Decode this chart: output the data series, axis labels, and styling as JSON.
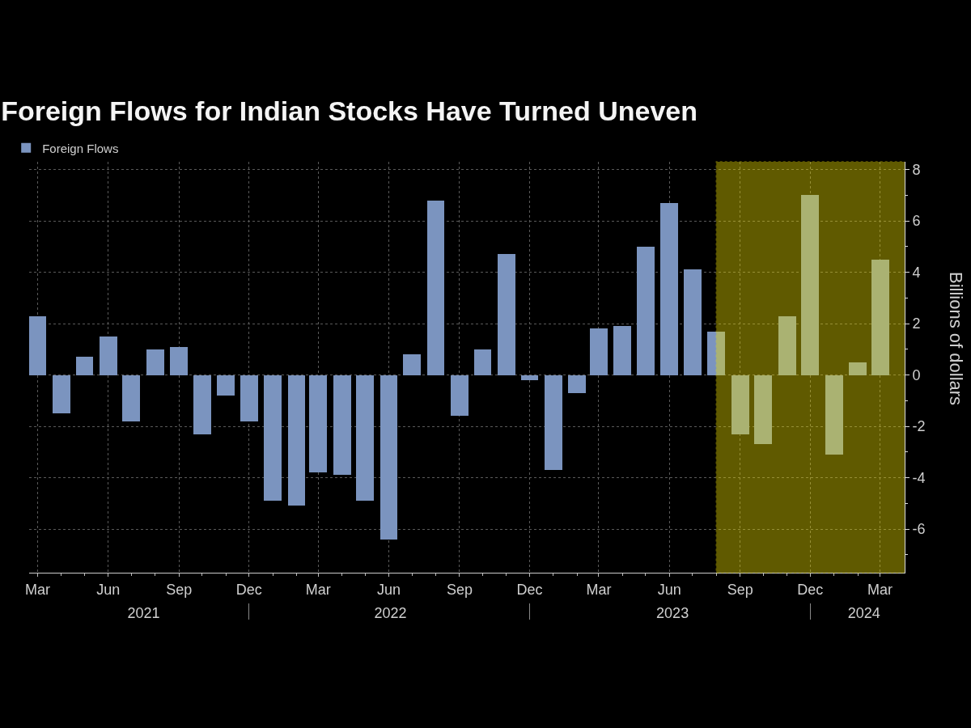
{
  "chart_data": {
    "type": "bar",
    "title": "Foreign Flows for Indian Stocks Have Turned Uneven",
    "ylabel": "Billions of dollars",
    "x": [
      "2021-03",
      "2021-04",
      "2021-05",
      "2021-06",
      "2021-07",
      "2021-08",
      "2021-09",
      "2021-10",
      "2021-11",
      "2021-12",
      "2022-01",
      "2022-02",
      "2022-03",
      "2022-04",
      "2022-05",
      "2022-06",
      "2022-07",
      "2022-08",
      "2022-09",
      "2022-10",
      "2022-11",
      "2022-12",
      "2023-01",
      "2023-02",
      "2023-03",
      "2023-04",
      "2023-05",
      "2023-06",
      "2023-07",
      "2023-08",
      "2023-09",
      "2023-10",
      "2023-11",
      "2023-12",
      "2024-01",
      "2024-02",
      "2024-03"
    ],
    "series": [
      {
        "name": "Foreign Flows",
        "color": "#7b94bf",
        "values": [
          2.3,
          -1.5,
          0.7,
          1.5,
          -1.8,
          1.0,
          1.1,
          -2.3,
          -0.8,
          -1.8,
          -4.9,
          -5.1,
          -3.8,
          -3.9,
          -4.9,
          -6.4,
          0.8,
          6.8,
          -1.6,
          1.0,
          4.7,
          -0.2,
          -3.7,
          -0.7,
          1.8,
          1.9,
          5.0,
          6.7,
          4.1,
          1.7,
          -2.3,
          -2.7,
          2.3,
          7.0,
          -3.1,
          0.5,
          4.5
        ]
      }
    ],
    "xlim": [
      "2021-02-18",
      "2024-04-02"
    ],
    "xticks": [
      {
        "value": "2021-03",
        "label": "Mar"
      },
      {
        "value": "2021-04",
        "label": null
      },
      {
        "value": "2021-05",
        "label": null
      },
      {
        "value": "2021-06",
        "label": "Jun"
      },
      {
        "value": "2021-07",
        "label": null
      },
      {
        "value": "2021-08",
        "label": null
      },
      {
        "value": "2021-09",
        "label": "Sep"
      },
      {
        "value": "2021-10",
        "label": null
      },
      {
        "value": "2021-11",
        "label": null
      },
      {
        "value": "2021-12",
        "label": "Dec"
      },
      {
        "value": "2022-01",
        "label": null
      },
      {
        "value": "2022-02",
        "label": null
      },
      {
        "value": "2022-03",
        "label": "Mar"
      },
      {
        "value": "2022-04",
        "label": null
      },
      {
        "value": "2022-05",
        "label": null
      },
      {
        "value": "2022-06",
        "label": "Jun"
      },
      {
        "value": "2022-07",
        "label": null
      },
      {
        "value": "2022-08",
        "label": null
      },
      {
        "value": "2022-09",
        "label": "Sep"
      },
      {
        "value": "2022-10",
        "label": null
      },
      {
        "value": "2022-11",
        "label": null
      },
      {
        "value": "2022-12",
        "label": "Dec"
      },
      {
        "value": "2023-01",
        "label": null
      },
      {
        "value": "2023-02",
        "label": null
      },
      {
        "value": "2023-03",
        "label": "Mar"
      },
      {
        "value": "2023-04",
        "label": null
      },
      {
        "value": "2023-05",
        "label": null
      },
      {
        "value": "2023-06",
        "label": "Jun"
      },
      {
        "value": "2023-07",
        "label": null
      },
      {
        "value": "2023-08",
        "label": null
      },
      {
        "value": "2023-09",
        "label": "Sep"
      },
      {
        "value": "2023-10",
        "label": null
      },
      {
        "value": "2023-11",
        "label": null
      },
      {
        "value": "2023-12",
        "label": "Dec"
      },
      {
        "value": "2024-01",
        "label": null
      },
      {
        "value": "2024-02",
        "label": null
      },
      {
        "value": "2024-03",
        "label": "Mar"
      }
    ],
    "x2lim": [
      "2021-02-18",
      "2024-04-02"
    ],
    "x2ticks": [
      {
        "value": "2021-07-17",
        "label": "2021"
      },
      {
        "value": "2021-12",
        "label": null
      },
      {
        "value": "2022-06-03",
        "label": "2022"
      },
      {
        "value": "2022-12",
        "label": null
      },
      {
        "value": "2023-06-05",
        "label": "2023"
      },
      {
        "value": "2023-12",
        "label": null
      },
      {
        "value": "2024-02-09",
        "label": "2024"
      }
    ],
    "ylim": [
      -7.7,
      8.3
    ],
    "yticks": [
      {
        "value": -7,
        "label": null
      },
      -6,
      {
        "value": -5,
        "label": null
      },
      -4,
      {
        "value": -3,
        "label": null
      },
      -2,
      {
        "value": -1,
        "label": null
      },
      0,
      {
        "value": 1,
        "label": null
      },
      2,
      {
        "value": 3,
        "label": null
      },
      4,
      {
        "value": 5,
        "label": null
      },
      6,
      {
        "value": 7,
        "label": null
      },
      8
    ],
    "bands": [
      {
        "axis": "x",
        "from": "2023-08",
        "to": "2024-04-02",
        "color": "#f0e000"
      }
    ],
    "grid": true,
    "legend": "top left"
  }
}
